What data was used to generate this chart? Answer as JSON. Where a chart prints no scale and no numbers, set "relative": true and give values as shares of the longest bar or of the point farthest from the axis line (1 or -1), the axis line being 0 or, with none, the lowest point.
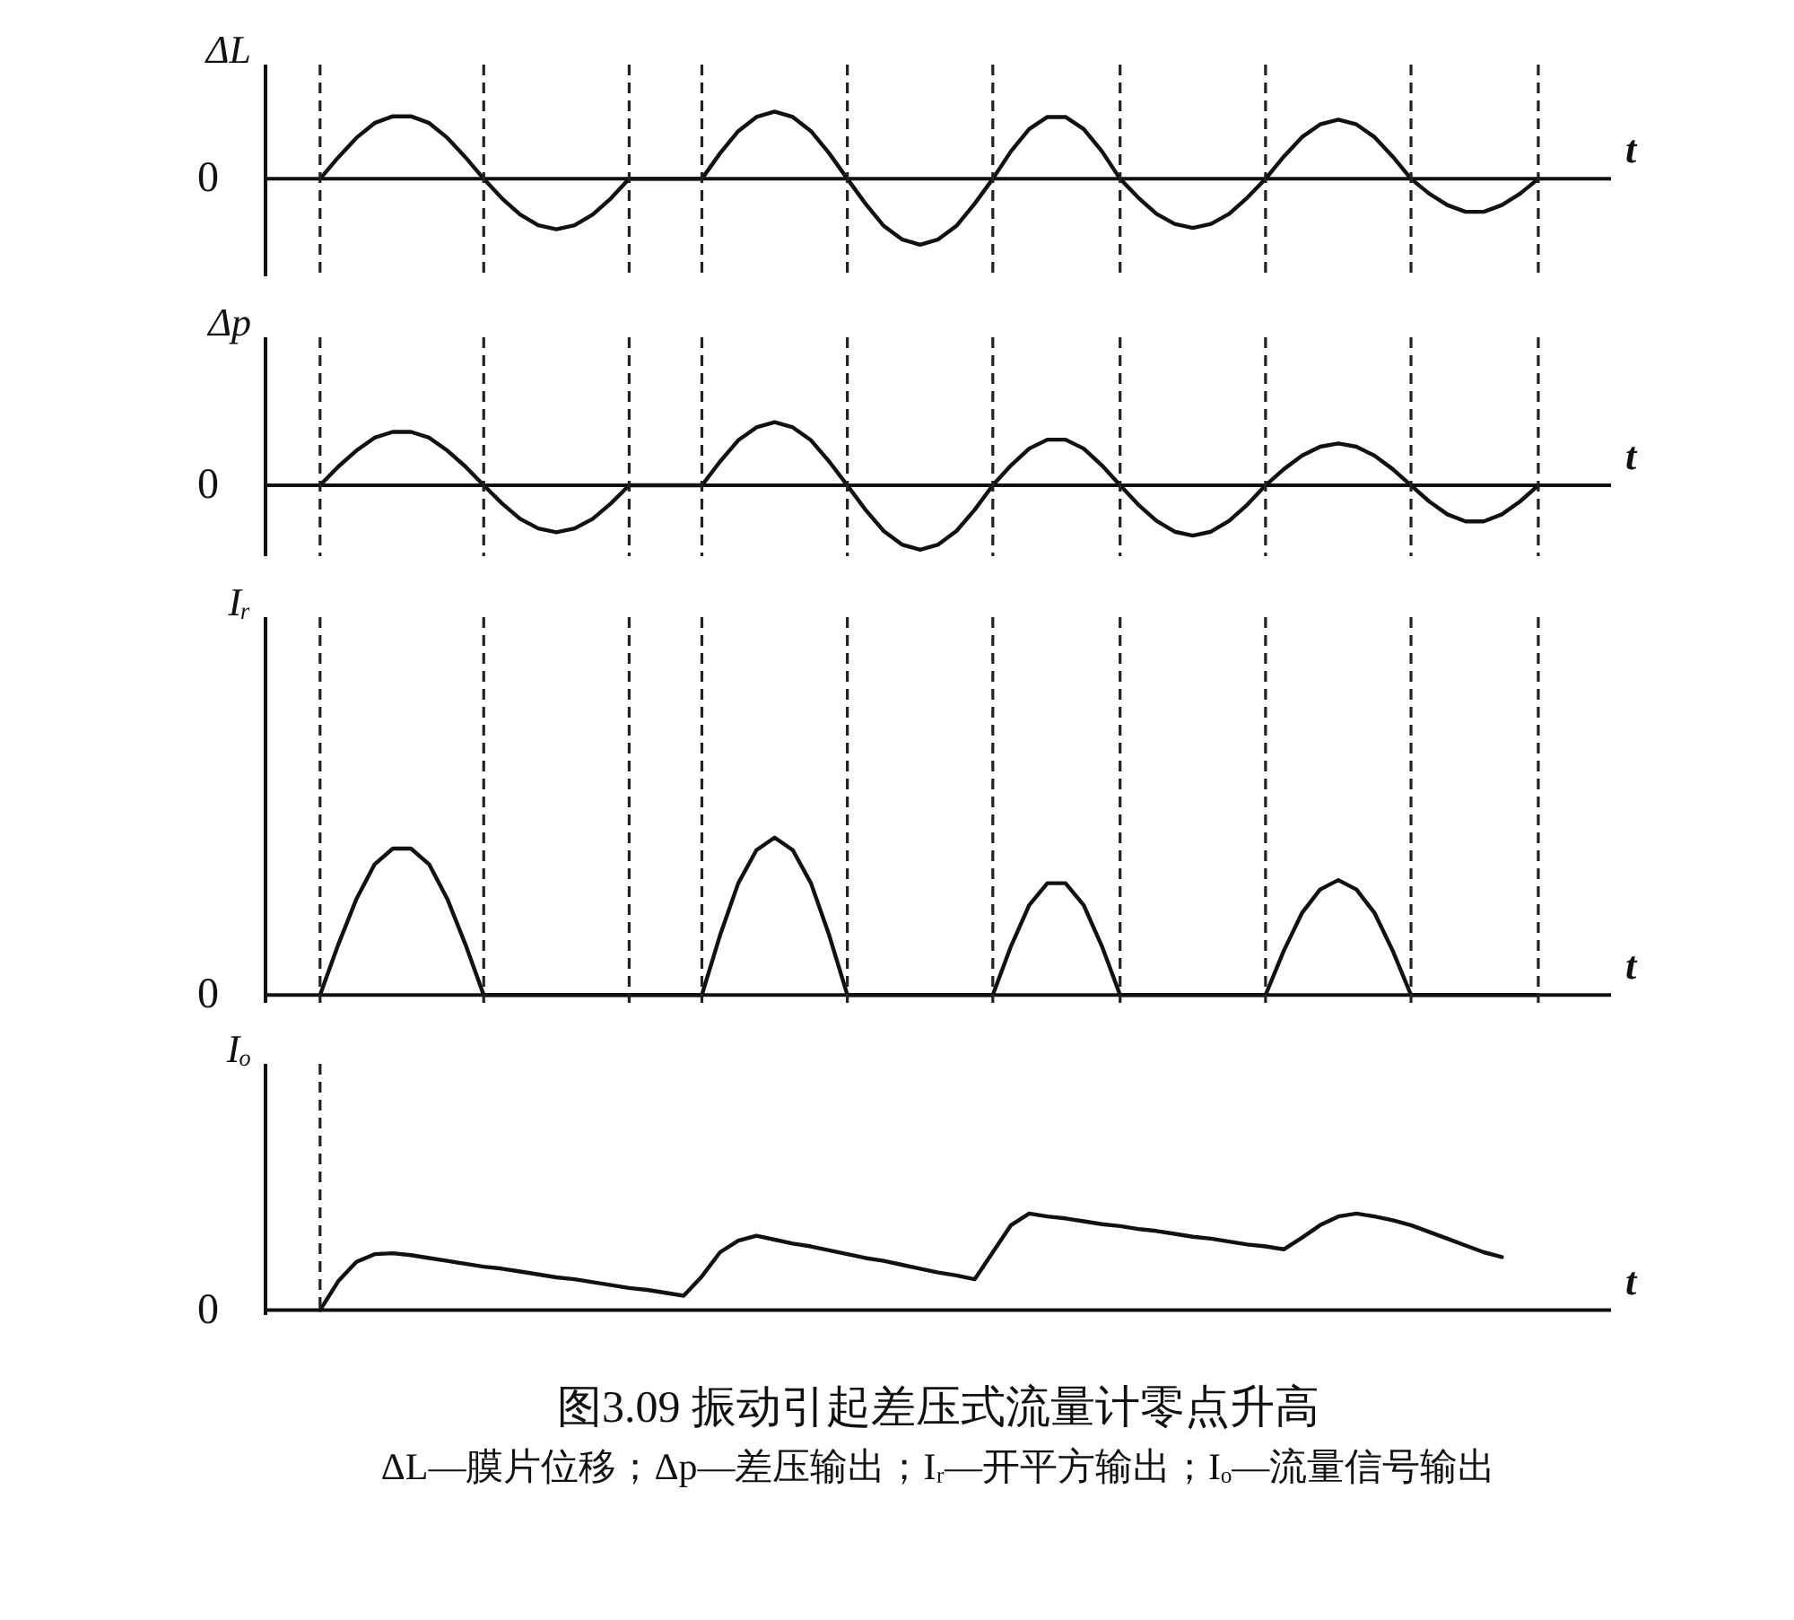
{
  "chart_data": [
    {
      "type": "line",
      "relative": true,
      "ylabel": "ΔL",
      "xlabel": "t",
      "annotations": [
        "0"
      ],
      "grid": "x",
      "marker": "none",
      "categories": [
        null,
        null,
        null,
        null,
        null,
        null,
        null,
        null,
        null,
        null,
        null,
        null,
        null,
        null,
        null,
        null,
        null,
        null,
        null,
        null,
        null,
        null,
        null,
        null,
        null,
        null,
        null,
        null,
        null,
        null,
        null,
        null,
        null,
        null,
        null,
        null,
        null,
        null,
        null,
        null,
        null,
        null,
        null,
        null,
        null,
        null,
        null,
        null,
        null,
        null,
        null,
        null,
        null,
        null,
        null,
        null,
        null,
        null,
        null,
        null,
        null,
        null,
        null,
        null,
        null,
        null,
        null,
        null,
        null,
        null,
        null,
        null,
        null,
        null,
        null
      ],
      "series": [
        {
          "color": "#111111",
          "values": [
            null,
            null,
            null,
            0,
            0.32,
            0.61,
            0.83,
            0.93,
            0.93,
            0.83,
            0.61,
            0.32,
            0,
            -0.29,
            -0.53,
            -0.69,
            -0.75,
            -0.69,
            -0.53,
            -0.29,
            0,
            0,
            0,
            0,
            0,
            0.38,
            0.71,
            0.92,
            1,
            0.92,
            0.71,
            0.38,
            0,
            -0.37,
            -0.7,
            -0.9,
            -0.98,
            -0.9,
            -0.7,
            -0.37,
            0,
            0.41,
            0.74,
            0.92,
            0.92,
            0.74,
            0.41,
            0,
            -0.28,
            -0.52,
            -0.67,
            -0.73,
            -0.67,
            -0.52,
            -0.28,
            0,
            0.33,
            0.62,
            0.81,
            0.88,
            0.81,
            0.62,
            0.33,
            0,
            -0.22,
            -0.39,
            -0.49,
            -0.49,
            -0.39,
            -0.22,
            0,
            null,
            null,
            null,
            null
          ]
        }
      ]
    },
    {
      "type": "line",
      "relative": true,
      "ylabel": "Δp",
      "xlabel": "t",
      "annotations": [
        "0"
      ],
      "grid": "x",
      "marker": "none",
      "categories": [
        null,
        null,
        null,
        null,
        null,
        null,
        null,
        null,
        null,
        null,
        null,
        null,
        null,
        null,
        null,
        null,
        null,
        null,
        null,
        null,
        null,
        null,
        null,
        null,
        null,
        null,
        null,
        null,
        null,
        null,
        null,
        null,
        null,
        null,
        null,
        null,
        null,
        null,
        null,
        null,
        null,
        null,
        null,
        null,
        null,
        null,
        null,
        null,
        null,
        null,
        null,
        null,
        null,
        null,
        null,
        null,
        null,
        null,
        null,
        null,
        null,
        null,
        null,
        null,
        null,
        null,
        null,
        null,
        null,
        null,
        null,
        null,
        null,
        null,
        null
      ],
      "series": [
        {
          "color": "#111111",
          "values": [
            null,
            null,
            null,
            0,
            0.29,
            0.54,
            0.74,
            0.83,
            0.83,
            0.74,
            0.54,
            0.29,
            0,
            -0.28,
            -0.52,
            -0.67,
            -0.73,
            -0.67,
            -0.52,
            -0.28,
            0,
            0,
            0,
            0,
            0,
            0.37,
            0.7,
            0.9,
            0.98,
            0.9,
            0.7,
            0.37,
            0,
            -0.38,
            -0.71,
            -0.92,
            -1,
            -0.92,
            -0.71,
            -0.38,
            0,
            0.31,
            0.57,
            0.71,
            0.71,
            0.57,
            0.31,
            0,
            -0.3,
            -0.55,
            -0.72,
            -0.78,
            -0.72,
            -0.55,
            -0.3,
            0,
            0.25,
            0.46,
            0.6,
            0.65,
            0.6,
            0.46,
            0.25,
            0,
            -0.25,
            -0.45,
            -0.56,
            -0.56,
            -0.45,
            -0.25,
            0,
            null,
            null,
            null,
            null
          ]
        }
      ]
    },
    {
      "type": "line",
      "relative": true,
      "ylabel": "Iᵣ",
      "xlabel": "t",
      "annotations": [
        "0"
      ],
      "grid": "x",
      "marker": "none",
      "categories": [
        null,
        null,
        null,
        null,
        null,
        null,
        null,
        null,
        null,
        null,
        null,
        null,
        null,
        null,
        null,
        null,
        null,
        null,
        null,
        null,
        null,
        null,
        null,
        null,
        null,
        null,
        null,
        null,
        null,
        null,
        null,
        null,
        null,
        null,
        null,
        null,
        null,
        null,
        null,
        null,
        null,
        null,
        null,
        null,
        null,
        null,
        null,
        null,
        null,
        null,
        null,
        null,
        null,
        null,
        null,
        null,
        null,
        null,
        null,
        null,
        null,
        null,
        null,
        null,
        null,
        null,
        null,
        null,
        null,
        null,
        null,
        null,
        null,
        null,
        null
      ],
      "series": [
        {
          "color": "#111111",
          "values": [
            null,
            null,
            null,
            0,
            0.32,
            0.61,
            0.83,
            0.93,
            0.93,
            0.83,
            0.61,
            0.32,
            0,
            0,
            0,
            0,
            0,
            0,
            0,
            0,
            0,
            0,
            0,
            0,
            0,
            0.38,
            0.71,
            0.92,
            1,
            0.92,
            0.71,
            0.38,
            0,
            0,
            0,
            0,
            0,
            0,
            0,
            0,
            0,
            0.31,
            0.57,
            0.71,
            0.71,
            0.57,
            0.31,
            0,
            0,
            0,
            0,
            0,
            0,
            0,
            0,
            0,
            0.28,
            0.52,
            0.67,
            0.73,
            0.67,
            0.52,
            0.28,
            0,
            0,
            0,
            0,
            0,
            0,
            0,
            0,
            null,
            null,
            null,
            null
          ]
        }
      ]
    },
    {
      "type": "line",
      "relative": true,
      "ylabel": "Iₒ",
      "xlabel": "t",
      "annotations": [
        "0"
      ],
      "grid": "x",
      "marker": "none",
      "title": "图3.09 振动引起差压式流量计零点升高",
      "subtitle": "ΔL—膜片位移；Δp—差压输出；Iᵣ—开平方输出；Iₒ—流量信号输出",
      "categories": [
        null,
        null,
        null,
        null,
        null,
        null,
        null,
        null,
        null,
        null,
        null,
        null,
        null,
        null,
        null,
        null,
        null,
        null,
        null,
        null,
        null,
        null,
        null,
        null,
        null,
        null,
        null,
        null,
        null,
        null,
        null,
        null,
        null,
        null,
        null,
        null,
        null,
        null,
        null,
        null,
        null,
        null,
        null,
        null,
        null,
        null,
        null,
        null,
        null,
        null,
        null,
        null,
        null,
        null,
        null,
        null,
        null,
        null,
        null,
        null,
        null,
        null,
        null,
        null,
        null,
        null,
        null,
        null,
        null,
        null,
        null,
        null,
        null,
        null,
        null
      ],
      "series": [
        {
          "color": "#111111",
          "values": [
            null,
            null,
            null,
            0,
            0.3,
            0.5,
            0.58,
            0.59,
            0.57,
            0.54,
            0.51,
            0.48,
            0.45,
            0.43,
            0.4,
            0.37,
            0.34,
            0.32,
            0.29,
            0.26,
            0.23,
            0.21,
            0.18,
            0.15,
            0.35,
            0.6,
            0.72,
            0.77,
            0.73,
            0.69,
            0.66,
            0.62,
            0.58,
            0.54,
            0.51,
            0.47,
            0.43,
            0.39,
            0.36,
            0.32,
            0.6,
            0.88,
            1,
            0.97,
            0.95,
            0.92,
            0.89,
            0.87,
            0.84,
            0.82,
            0.79,
            0.76,
            0.74,
            0.71,
            0.68,
            0.66,
            0.63,
            0.75,
            0.88,
            0.97,
            1,
            0.97,
            0.93,
            0.88,
            0.81,
            0.74,
            0.67,
            0.6,
            0.55,
            null,
            null,
            null,
            null,
            null,
            null
          ]
        }
      ]
    }
  ]
}
